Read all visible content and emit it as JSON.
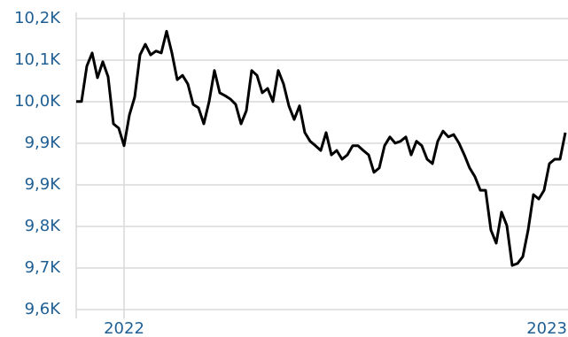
{
  "chart_data": {
    "type": "line",
    "categories": [
      null,
      null,
      null,
      null,
      null,
      null,
      null,
      null,
      null,
      "2022",
      null,
      null,
      null,
      null,
      null,
      null,
      null,
      null,
      null,
      null,
      null,
      null,
      null,
      null,
      null,
      null,
      null,
      null,
      null,
      null,
      null,
      null,
      null,
      null,
      null,
      null,
      null,
      null,
      null,
      null,
      null,
      null,
      null,
      null,
      null,
      null,
      null,
      null,
      null,
      null,
      null,
      null,
      null,
      null,
      null,
      null,
      null,
      null,
      null,
      null,
      null,
      null,
      null,
      null,
      null,
      null,
      null,
      null,
      null,
      null,
      null,
      null,
      null,
      null,
      null,
      null,
      null,
      null,
      null,
      null,
      null,
      null,
      null,
      null,
      null,
      null,
      null,
      null,
      null,
      null,
      null,
      null,
      "2023"
    ],
    "values": [
      10029,
      10029,
      10102,
      10129,
      10078,
      10111,
      10080,
      9983,
      9974,
      9938,
      10001,
      10038,
      10125,
      10147,
      10125,
      10133,
      10129,
      10174,
      10129,
      10074,
      10083,
      10065,
      10023,
      10016,
      9983,
      10029,
      10093,
      10047,
      10041,
      10034,
      10023,
      9983,
      10010,
      10093,
      10083,
      10047,
      10056,
      10029,
      10093,
      10065,
      10020,
      9992,
      10020,
      9965,
      9947,
      9938,
      9928,
      9965,
      9919,
      9928,
      9910,
      9919,
      9938,
      9938,
      9928,
      9919,
      9883,
      9892,
      9938,
      9956,
      9943,
      9947,
      9956,
      9919,
      9947,
      9938,
      9910,
      9901,
      9947,
      9968,
      9956,
      9961,
      9943,
      9919,
      9892,
      9874,
      9846,
      9846,
      9764,
      9737,
      9801,
      9773,
      9691,
      9695,
      9709,
      9764,
      9837,
      9828,
      9846,
      9901,
      9910,
      9910,
      9965
    ],
    "color": "#000000",
    "ylim": [
      9600,
      10200
    ],
    "yticks": [
      {
        "value": 9600,
        "label": "9,6K"
      },
      {
        "value": 9685.71,
        "label": "9,7K"
      },
      {
        "value": 9771.43,
        "label": "9,8K"
      },
      {
        "value": 9857.14,
        "label": "9,9K"
      },
      {
        "value": 9942.86,
        "label": "9,9K"
      },
      {
        "value": 10028.57,
        "label": "10,0K"
      },
      {
        "value": 10114.29,
        "label": "10,1K"
      },
      {
        "value": 10200,
        "label": "10,2K"
      }
    ],
    "grid": true
  }
}
